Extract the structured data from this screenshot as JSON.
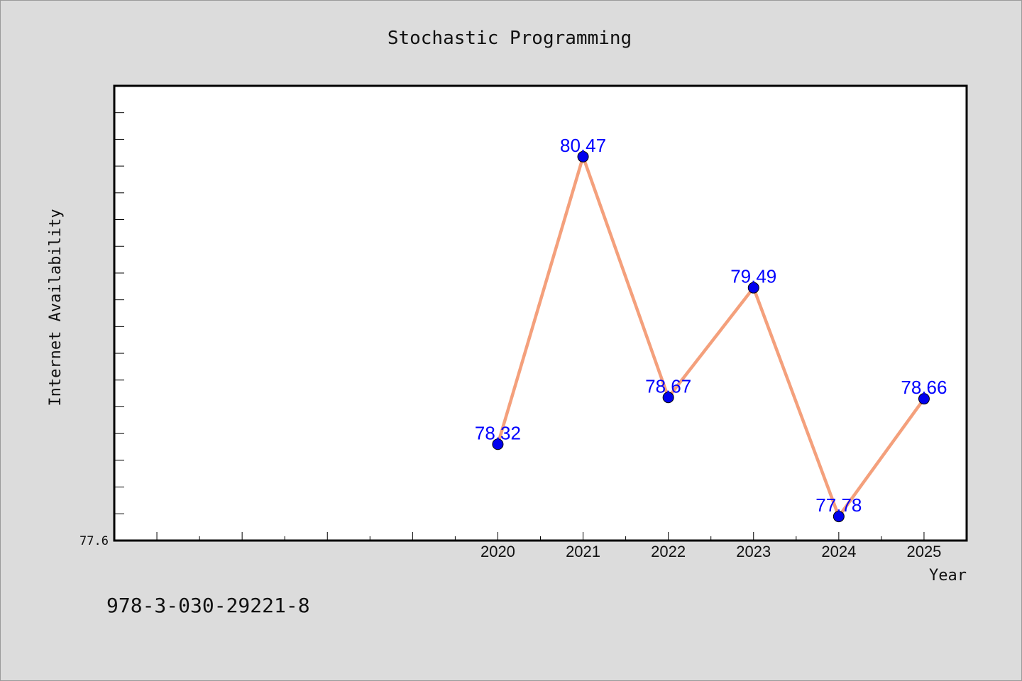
{
  "chart_data": {
    "type": "line",
    "title": "Stochastic Programming",
    "xlabel": "Year",
    "ylabel": "Internet Availability",
    "x": [
      2020,
      2021,
      2022,
      2023,
      2024,
      2025
    ],
    "xlim": [
      2015.5,
      2025.5
    ],
    "ylim": [
      77.6,
      81.0
    ],
    "y_min_label": "77.6",
    "series": [
      {
        "values": [
          78.32,
          80.47,
          78.67,
          79.49,
          77.78,
          78.66
        ],
        "labels": [
          "78.32",
          "80.47",
          "78.67",
          "79.49",
          "77.78",
          "78.66"
        ],
        "line_color": "#f4a07c",
        "marker_color": "#0000ee"
      }
    ],
    "data_label_color": "#0000ff",
    "grid": false,
    "legend": "none",
    "background": "#dcdcdc",
    "plot_background": "#ffffff"
  },
  "footer": {
    "text": "978-3-030-29221-8"
  }
}
